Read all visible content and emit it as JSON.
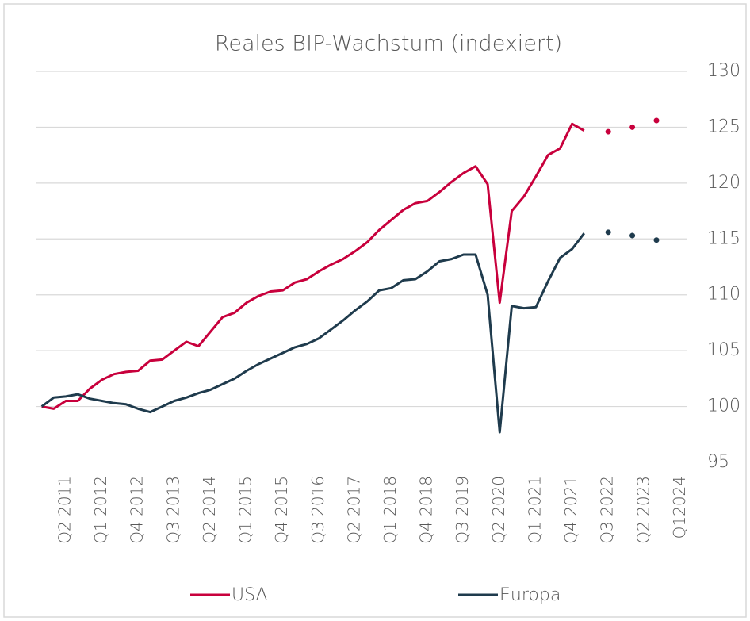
{
  "chart_data": {
    "type": "line",
    "title": "Reales BIP-Wachstum (indexiert)",
    "categories": [
      null,
      null,
      "Q2 2011",
      null,
      null,
      "Q1 2012",
      null,
      null,
      "Q4 2012",
      null,
      null,
      "Q3 2013",
      null,
      null,
      "Q2 2014",
      null,
      null,
      "Q1 2015",
      null,
      null,
      "Q4 2015",
      null,
      null,
      "Q3 2016",
      null,
      null,
      "Q2 2017",
      null,
      null,
      "Q1 2018",
      null,
      null,
      "Q4 2018",
      null,
      null,
      "Q3 2019",
      null,
      null,
      "Q2 2020",
      null,
      null,
      "Q1 2021",
      null,
      null,
      "Q4 2021",
      null,
      null,
      "Q3 2022",
      null,
      null,
      "Q2 2023",
      null,
      null,
      "Q12024"
    ],
    "series": [
      {
        "name": "USA",
        "color": "#c8003c",
        "values": [
          100.0,
          99.8,
          100.5,
          100.5,
          101.6,
          102.4,
          102.9,
          103.1,
          103.2,
          104.1,
          104.2,
          105.0,
          105.8,
          105.4,
          106.7,
          108.0,
          108.4,
          109.3,
          109.9,
          110.3,
          110.4,
          111.1,
          111.4,
          112.1,
          112.7,
          113.2,
          113.9,
          114.7,
          115.8,
          116.7,
          117.6,
          118.2,
          118.4,
          119.2,
          120.1,
          120.9,
          121.5,
          119.9,
          109.3,
          117.5,
          118.8,
          120.6,
          122.5,
          123.1,
          125.3,
          124.7,
          null,
          124.6,
          null,
          125.0,
          null,
          125.6,
          null,
          null
        ]
      },
      {
        "name": "Europa",
        "color": "#1f3b4d",
        "values": [
          100.0,
          100.8,
          100.9,
          101.1,
          100.7,
          100.5,
          100.3,
          100.2,
          99.8,
          99.5,
          100.0,
          100.5,
          100.8,
          101.2,
          101.5,
          102.0,
          102.5,
          103.2,
          103.8,
          104.3,
          104.8,
          105.3,
          105.6,
          106.1,
          106.9,
          107.7,
          108.6,
          109.4,
          110.4,
          110.6,
          111.3,
          111.4,
          112.1,
          113.0,
          113.2,
          113.6,
          113.6,
          110.0,
          97.7,
          109.0,
          108.8,
          108.9,
          111.2,
          113.3,
          114.1,
          115.5,
          null,
          115.6,
          null,
          115.3,
          null,
          114.9,
          null,
          null
        ]
      }
    ],
    "ylim": [
      95,
      130
    ],
    "yticks": [
      95,
      100,
      105,
      110,
      115,
      120,
      125,
      130
    ],
    "grid": true,
    "legend": "bottom"
  }
}
